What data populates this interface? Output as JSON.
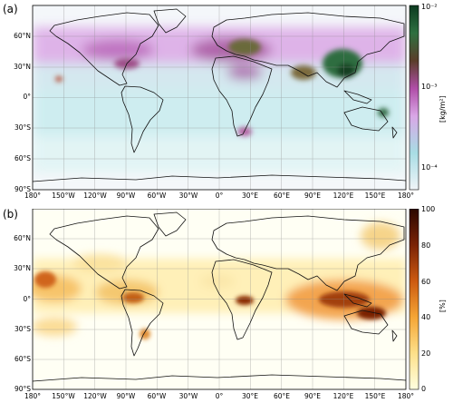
{
  "panels": [
    {
      "label": "(a)",
      "colorbar": {
        "label": "[kg/m²]",
        "ticks": [
          "10⁻²",
          "10⁻³",
          "10⁻⁴"
        ],
        "scale": "log",
        "colors": [
          "#f0f4f8",
          "#a8dde4",
          "#d9a7e6",
          "#b04ea8",
          "#5a3e2a",
          "#2e7040",
          "#0d3b20"
        ]
      },
      "ylabels": [
        "60°N",
        "30°N",
        "0°",
        "30°S",
        "60°S",
        "90°S"
      ],
      "xlabels": [
        "180°",
        "150°W",
        "120°W",
        "90°W",
        "60°W",
        "30°W",
        "0°",
        "30°E",
        "60°E",
        "90°E",
        "120°E",
        "150°E",
        "180°"
      ]
    },
    {
      "label": "(b)",
      "colorbar": {
        "label": "[%]",
        "ticks": [
          "100",
          "80",
          "60",
          "40",
          "20",
          "0"
        ],
        "scale": "linear",
        "colors": [
          "#ffffe0",
          "#fde08a",
          "#f5a535",
          "#cc5a10",
          "#7a2306",
          "#2b0700"
        ]
      },
      "ylabels": [
        "60°N",
        "30°N",
        "0°",
        "30°S",
        "60°S",
        "90°S"
      ],
      "xlabels": [
        "180°",
        "150°W",
        "120°W",
        "90°W",
        "60°W",
        "30°W",
        "0°",
        "30°E",
        "60°E",
        "90°E",
        "120°E",
        "150°E",
        "180°"
      ]
    }
  ]
}
